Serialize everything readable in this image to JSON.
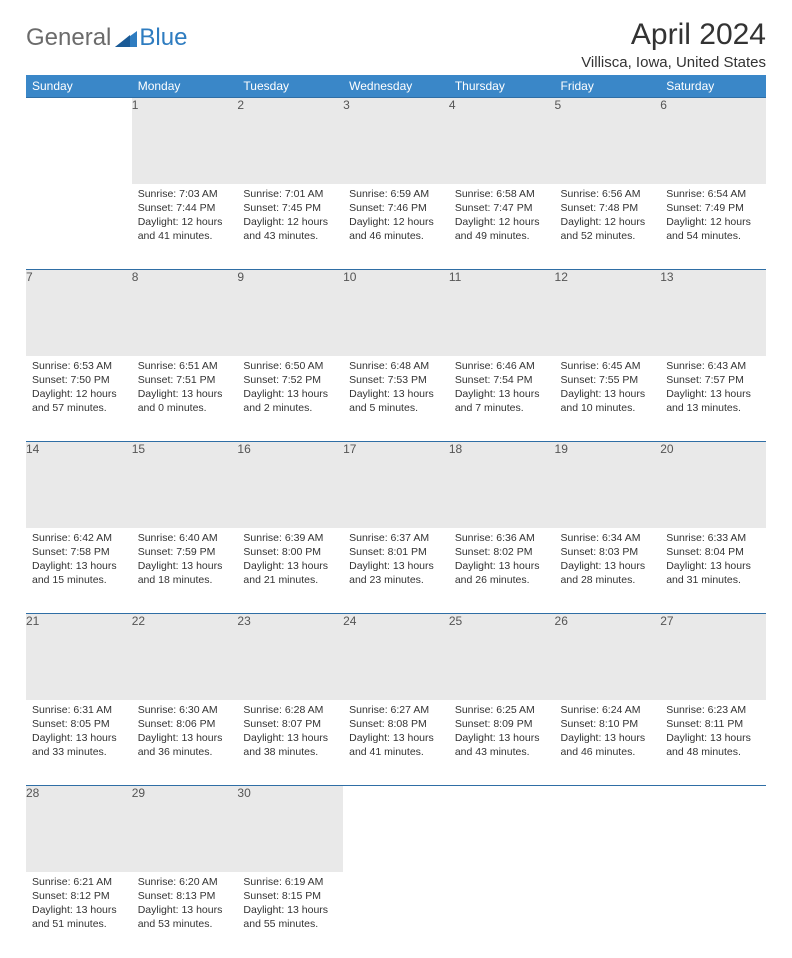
{
  "logo": {
    "general": "General",
    "blue": "Blue"
  },
  "title": "April 2024",
  "location": "Villisca, Iowa, United States",
  "header_bg": "#3a87c8",
  "daynum_bg": "#e9e9e9",
  "row_border": "#2f6ea5",
  "dayNames": [
    "Sunday",
    "Monday",
    "Tuesday",
    "Wednesday",
    "Thursday",
    "Friday",
    "Saturday"
  ],
  "weeks": [
    [
      null,
      {
        "n": "1",
        "sr": "Sunrise: 7:03 AM",
        "ss": "Sunset: 7:44 PM",
        "dl": "Daylight: 12 hours and 41 minutes."
      },
      {
        "n": "2",
        "sr": "Sunrise: 7:01 AM",
        "ss": "Sunset: 7:45 PM",
        "dl": "Daylight: 12 hours and 43 minutes."
      },
      {
        "n": "3",
        "sr": "Sunrise: 6:59 AM",
        "ss": "Sunset: 7:46 PM",
        "dl": "Daylight: 12 hours and 46 minutes."
      },
      {
        "n": "4",
        "sr": "Sunrise: 6:58 AM",
        "ss": "Sunset: 7:47 PM",
        "dl": "Daylight: 12 hours and 49 minutes."
      },
      {
        "n": "5",
        "sr": "Sunrise: 6:56 AM",
        "ss": "Sunset: 7:48 PM",
        "dl": "Daylight: 12 hours and 52 minutes."
      },
      {
        "n": "6",
        "sr": "Sunrise: 6:54 AM",
        "ss": "Sunset: 7:49 PM",
        "dl": "Daylight: 12 hours and 54 minutes."
      }
    ],
    [
      {
        "n": "7",
        "sr": "Sunrise: 6:53 AM",
        "ss": "Sunset: 7:50 PM",
        "dl": "Daylight: 12 hours and 57 minutes."
      },
      {
        "n": "8",
        "sr": "Sunrise: 6:51 AM",
        "ss": "Sunset: 7:51 PM",
        "dl": "Daylight: 13 hours and 0 minutes."
      },
      {
        "n": "9",
        "sr": "Sunrise: 6:50 AM",
        "ss": "Sunset: 7:52 PM",
        "dl": "Daylight: 13 hours and 2 minutes."
      },
      {
        "n": "10",
        "sr": "Sunrise: 6:48 AM",
        "ss": "Sunset: 7:53 PM",
        "dl": "Daylight: 13 hours and 5 minutes."
      },
      {
        "n": "11",
        "sr": "Sunrise: 6:46 AM",
        "ss": "Sunset: 7:54 PM",
        "dl": "Daylight: 13 hours and 7 minutes."
      },
      {
        "n": "12",
        "sr": "Sunrise: 6:45 AM",
        "ss": "Sunset: 7:55 PM",
        "dl": "Daylight: 13 hours and 10 minutes."
      },
      {
        "n": "13",
        "sr": "Sunrise: 6:43 AM",
        "ss": "Sunset: 7:57 PM",
        "dl": "Daylight: 13 hours and 13 minutes."
      }
    ],
    [
      {
        "n": "14",
        "sr": "Sunrise: 6:42 AM",
        "ss": "Sunset: 7:58 PM",
        "dl": "Daylight: 13 hours and 15 minutes."
      },
      {
        "n": "15",
        "sr": "Sunrise: 6:40 AM",
        "ss": "Sunset: 7:59 PM",
        "dl": "Daylight: 13 hours and 18 minutes."
      },
      {
        "n": "16",
        "sr": "Sunrise: 6:39 AM",
        "ss": "Sunset: 8:00 PM",
        "dl": "Daylight: 13 hours and 21 minutes."
      },
      {
        "n": "17",
        "sr": "Sunrise: 6:37 AM",
        "ss": "Sunset: 8:01 PM",
        "dl": "Daylight: 13 hours and 23 minutes."
      },
      {
        "n": "18",
        "sr": "Sunrise: 6:36 AM",
        "ss": "Sunset: 8:02 PM",
        "dl": "Daylight: 13 hours and 26 minutes."
      },
      {
        "n": "19",
        "sr": "Sunrise: 6:34 AM",
        "ss": "Sunset: 8:03 PM",
        "dl": "Daylight: 13 hours and 28 minutes."
      },
      {
        "n": "20",
        "sr": "Sunrise: 6:33 AM",
        "ss": "Sunset: 8:04 PM",
        "dl": "Daylight: 13 hours and 31 minutes."
      }
    ],
    [
      {
        "n": "21",
        "sr": "Sunrise: 6:31 AM",
        "ss": "Sunset: 8:05 PM",
        "dl": "Daylight: 13 hours and 33 minutes."
      },
      {
        "n": "22",
        "sr": "Sunrise: 6:30 AM",
        "ss": "Sunset: 8:06 PM",
        "dl": "Daylight: 13 hours and 36 minutes."
      },
      {
        "n": "23",
        "sr": "Sunrise: 6:28 AM",
        "ss": "Sunset: 8:07 PM",
        "dl": "Daylight: 13 hours and 38 minutes."
      },
      {
        "n": "24",
        "sr": "Sunrise: 6:27 AM",
        "ss": "Sunset: 8:08 PM",
        "dl": "Daylight: 13 hours and 41 minutes."
      },
      {
        "n": "25",
        "sr": "Sunrise: 6:25 AM",
        "ss": "Sunset: 8:09 PM",
        "dl": "Daylight: 13 hours and 43 minutes."
      },
      {
        "n": "26",
        "sr": "Sunrise: 6:24 AM",
        "ss": "Sunset: 8:10 PM",
        "dl": "Daylight: 13 hours and 46 minutes."
      },
      {
        "n": "27",
        "sr": "Sunrise: 6:23 AM",
        "ss": "Sunset: 8:11 PM",
        "dl": "Daylight: 13 hours and 48 minutes."
      }
    ],
    [
      {
        "n": "28",
        "sr": "Sunrise: 6:21 AM",
        "ss": "Sunset: 8:12 PM",
        "dl": "Daylight: 13 hours and 51 minutes."
      },
      {
        "n": "29",
        "sr": "Sunrise: 6:20 AM",
        "ss": "Sunset: 8:13 PM",
        "dl": "Daylight: 13 hours and 53 minutes."
      },
      {
        "n": "30",
        "sr": "Sunrise: 6:19 AM",
        "ss": "Sunset: 8:15 PM",
        "dl": "Daylight: 13 hours and 55 minutes."
      },
      null,
      null,
      null,
      null
    ]
  ]
}
